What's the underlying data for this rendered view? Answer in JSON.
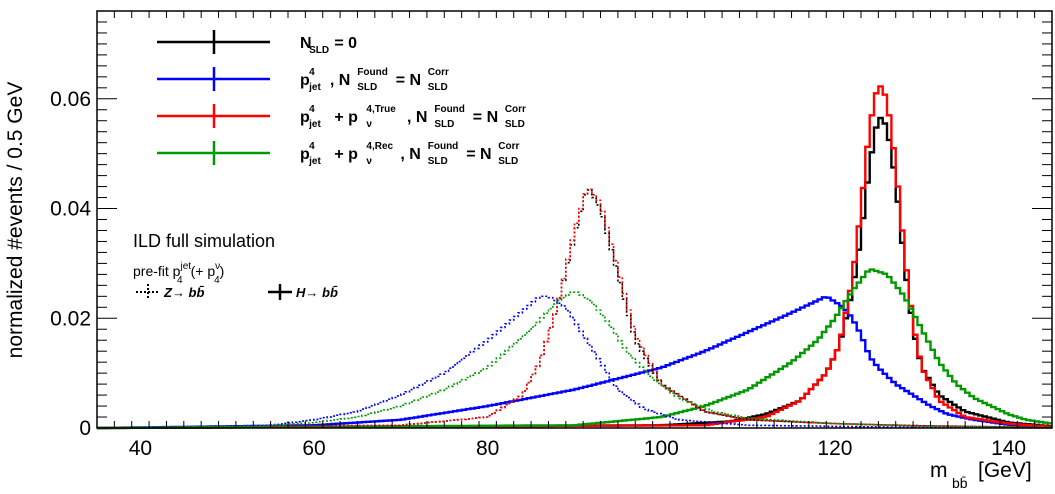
{
  "chart_data": {
    "type": "line",
    "step": true,
    "xlabel_main": "m",
    "xlabel_sub": "bb̄",
    "xlabel_unit": "[GeV]",
    "ylabel": "normalized #events / 0.5 GeV",
    "xlim": [
      35,
      145
    ],
    "ylim": [
      0,
      0.076
    ],
    "xticks": [
      40,
      60,
      80,
      100,
      120,
      140
    ],
    "yticks": [
      0,
      0.02,
      0.04,
      0.06
    ],
    "ytick_labels": [
      "0",
      "0.02",
      "0.04",
      "0.06"
    ],
    "grid": false,
    "legend_placement": "top-left",
    "annotations": {
      "line1": "ILD full simulation",
      "line2_prefix": "pre-fit p",
      "line2_sup1": "jet",
      "line2_sub1": "4",
      "line2_mid": "(+ p",
      "line2_sup2": "ν",
      "line2_sub2": "4",
      "line2_end": ")",
      "z_label": "Z→ bb̄",
      "h_label": "H→ bb̄"
    },
    "legend": [
      {
        "color": "#000000",
        "parts": [
          [
            "N",
            ""
          ],
          [
            "SLD",
            "sub"
          ],
          [
            " = 0",
            ""
          ]
        ]
      },
      {
        "color": "#0000ff",
        "parts": [
          [
            "p",
            ""
          ],
          [
            "4",
            "sup"
          ],
          [
            "jet",
            "sub"
          ],
          [
            ", N",
            ""
          ],
          [
            "Found",
            "sup"
          ],
          [
            "SLD",
            "sub"
          ],
          [
            " = N",
            ""
          ],
          [
            "Corr",
            "sup"
          ],
          [
            "SLD",
            "sub"
          ]
        ]
      },
      {
        "color": "#ff0000",
        "parts": [
          [
            "p",
            ""
          ],
          [
            "4",
            "sup"
          ],
          [
            "jet",
            "sub"
          ],
          [
            " + p",
            ""
          ],
          [
            "4,True",
            "sup"
          ],
          [
            "ν",
            "sub"
          ],
          [
            ", N",
            ""
          ],
          [
            "Found",
            "sup"
          ],
          [
            "SLD",
            "sub"
          ],
          [
            " = N",
            ""
          ],
          [
            "Corr",
            "sup"
          ],
          [
            "SLD",
            "sub"
          ]
        ]
      },
      {
        "color": "#009900",
        "parts": [
          [
            "p",
            ""
          ],
          [
            "4",
            "sup"
          ],
          [
            "jet",
            "sub"
          ],
          [
            " + p",
            ""
          ],
          [
            "4,Rec",
            "sup"
          ],
          [
            "ν",
            "sub"
          ],
          [
            ", N",
            ""
          ],
          [
            "Found",
            "sup"
          ],
          [
            "SLD",
            "sub"
          ],
          [
            " = N",
            ""
          ],
          [
            "Corr",
            "sup"
          ],
          [
            "SLD",
            "sub"
          ]
        ]
      }
    ],
    "series": [
      {
        "key": "H_black",
        "color": "#000000",
        "dashed": false,
        "shape": [
          [
            35,
            0
          ],
          [
            100,
            0.0005
          ],
          [
            108,
            0.0012
          ],
          [
            112,
            0.0025
          ],
          [
            116,
            0.005
          ],
          [
            119,
            0.01
          ],
          [
            120.5,
            0.015
          ],
          [
            122,
            0.025
          ],
          [
            123,
            0.035
          ],
          [
            124,
            0.048
          ],
          [
            125,
            0.057
          ],
          [
            126,
            0.055
          ],
          [
            127,
            0.045
          ],
          [
            128,
            0.03
          ],
          [
            129,
            0.018
          ],
          [
            130,
            0.011
          ],
          [
            132,
            0.006
          ],
          [
            135,
            0.003
          ],
          [
            140,
            0.001
          ],
          [
            145,
            0.0003
          ]
        ]
      },
      {
        "key": "H_blue",
        "color": "#0000ff",
        "dashed": false,
        "shape": [
          [
            35,
            0
          ],
          [
            60,
            0.0005
          ],
          [
            70,
            0.0015
          ],
          [
            80,
            0.004
          ],
          [
            90,
            0.007
          ],
          [
            100,
            0.011
          ],
          [
            105,
            0.014
          ],
          [
            110,
            0.0175
          ],
          [
            115,
            0.021
          ],
          [
            119,
            0.024
          ],
          [
            121,
            0.022
          ],
          [
            122,
            0.02
          ],
          [
            123,
            0.017
          ],
          [
            124,
            0.013
          ],
          [
            125,
            0.011
          ],
          [
            127,
            0.008
          ],
          [
            129,
            0.006
          ],
          [
            131,
            0.004
          ],
          [
            133,
            0.0025
          ],
          [
            136,
            0.0015
          ],
          [
            140,
            0.0006
          ],
          [
            145,
            0.0002
          ]
        ]
      },
      {
        "key": "H_red",
        "color": "#ff0000",
        "dashed": false,
        "shape": [
          [
            35,
            0
          ],
          [
            105,
            0.0005
          ],
          [
            112,
            0.002
          ],
          [
            116,
            0.005
          ],
          [
            119,
            0.01
          ],
          [
            120.5,
            0.015
          ],
          [
            122,
            0.027
          ],
          [
            123,
            0.04
          ],
          [
            124,
            0.055
          ],
          [
            125,
            0.063
          ],
          [
            126,
            0.06
          ],
          [
            127,
            0.048
          ],
          [
            128,
            0.032
          ],
          [
            129,
            0.019
          ],
          [
            130,
            0.011
          ],
          [
            132,
            0.005
          ],
          [
            135,
            0.002
          ],
          [
            140,
            0.0008
          ],
          [
            145,
            0.0002
          ]
        ]
      },
      {
        "key": "H_green",
        "color": "#009900",
        "dashed": false,
        "shape": [
          [
            35,
            0
          ],
          [
            90,
            0.0005
          ],
          [
            100,
            0.002
          ],
          [
            105,
            0.004
          ],
          [
            110,
            0.007
          ],
          [
            115,
            0.012
          ],
          [
            118,
            0.016
          ],
          [
            120,
            0.02
          ],
          [
            122,
            0.025
          ],
          [
            124,
            0.029
          ],
          [
            126,
            0.028
          ],
          [
            128,
            0.024
          ],
          [
            130,
            0.018
          ],
          [
            132,
            0.012
          ],
          [
            134,
            0.008
          ],
          [
            136,
            0.0055
          ],
          [
            138,
            0.004
          ],
          [
            140,
            0.0025
          ],
          [
            142,
            0.0015
          ],
          [
            145,
            0.0008
          ]
        ]
      },
      {
        "key": "Z_black",
        "color": "#000000",
        "dashed": true,
        "shape": [
          [
            35,
            0
          ],
          [
            70,
            0.0005
          ],
          [
            80,
            0.002
          ],
          [
            84,
            0.006
          ],
          [
            86,
            0.012
          ],
          [
            88,
            0.022
          ],
          [
            90,
            0.035
          ],
          [
            91.5,
            0.044
          ],
          [
            93,
            0.04
          ],
          [
            95,
            0.028
          ],
          [
            97,
            0.016
          ],
          [
            100,
            0.008
          ],
          [
            105,
            0.003
          ],
          [
            110,
            0.0015
          ],
          [
            120,
            0.0008
          ],
          [
            130,
            0.0004
          ],
          [
            145,
            0.0001
          ]
        ]
      },
      {
        "key": "Z_red",
        "color": "#ff0000",
        "dashed": true,
        "shape": [
          [
            35,
            0
          ],
          [
            70,
            0.0005
          ],
          [
            80,
            0.002
          ],
          [
            84,
            0.006
          ],
          [
            86,
            0.012
          ],
          [
            88,
            0.022
          ],
          [
            90,
            0.036
          ],
          [
            91.5,
            0.044
          ],
          [
            93,
            0.041
          ],
          [
            95,
            0.029
          ],
          [
            97,
            0.017
          ],
          [
            100,
            0.008
          ],
          [
            105,
            0.003
          ],
          [
            110,
            0.0015
          ],
          [
            120,
            0.0008
          ],
          [
            130,
            0.0004
          ],
          [
            145,
            0.0001
          ]
        ]
      },
      {
        "key": "Z_blue",
        "color": "#0000ff",
        "dashed": true,
        "shape": [
          [
            35,
            0
          ],
          [
            55,
            0.0005
          ],
          [
            60,
            0.0015
          ],
          [
            65,
            0.003
          ],
          [
            70,
            0.006
          ],
          [
            75,
            0.01
          ],
          [
            80,
            0.016
          ],
          [
            83,
            0.02
          ],
          [
            86,
            0.024
          ],
          [
            87,
            0.024
          ],
          [
            89,
            0.022
          ],
          [
            91,
            0.017
          ],
          [
            93,
            0.012
          ],
          [
            95,
            0.007
          ],
          [
            98,
            0.0035
          ],
          [
            102,
            0.0015
          ],
          [
            110,
            0.0005
          ],
          [
            125,
            0.0002
          ],
          [
            145,
            0
          ]
        ]
      },
      {
        "key": "Z_green",
        "color": "#009900",
        "dashed": true,
        "shape": [
          [
            35,
            0
          ],
          [
            55,
            0.0004
          ],
          [
            60,
            0.001
          ],
          [
            65,
            0.002
          ],
          [
            70,
            0.004
          ],
          [
            75,
            0.007
          ],
          [
            80,
            0.011
          ],
          [
            85,
            0.018
          ],
          [
            88,
            0.023
          ],
          [
            90,
            0.025
          ],
          [
            92,
            0.023
          ],
          [
            94,
            0.019
          ],
          [
            96,
            0.014
          ],
          [
            99,
            0.009
          ],
          [
            102,
            0.0055
          ],
          [
            106,
            0.003
          ],
          [
            110,
            0.0018
          ],
          [
            120,
            0.0008
          ],
          [
            130,
            0.0003
          ],
          [
            145,
            0.0001
          ]
        ]
      }
    ]
  }
}
